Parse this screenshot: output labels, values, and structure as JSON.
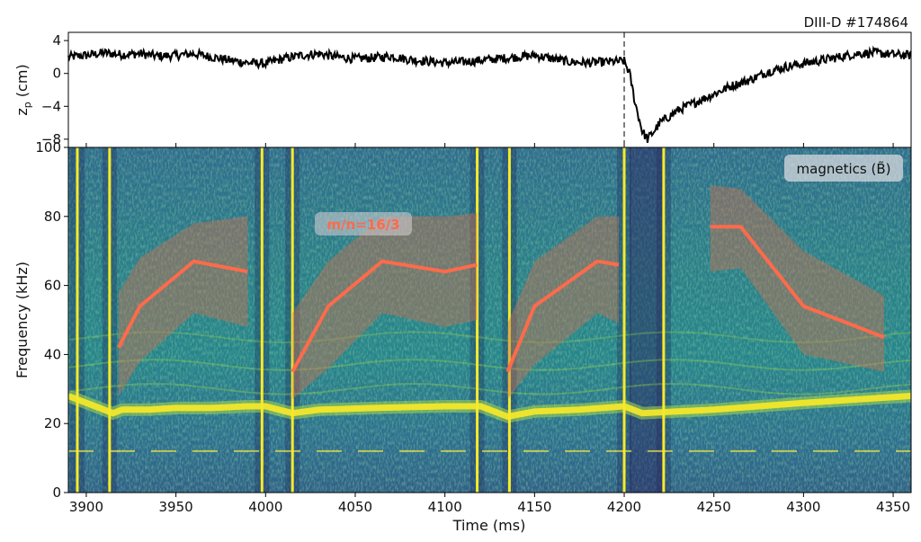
{
  "shot_label": "DIII-D #174864",
  "chart_data": [
    {
      "type": "line",
      "ylabel": "z_p (cm)",
      "ylim": [
        -9,
        5
      ],
      "xlim": [
        3890,
        4360
      ],
      "yticks": [
        4,
        0,
        -4,
        -8
      ],
      "yticklabels": [
        "4",
        "0",
        "−4",
        "−8"
      ],
      "event_time": 4200,
      "series": [
        {
          "x": [
            3890,
            3900,
            3910,
            3920,
            3930,
            3940,
            3950,
            3960,
            3970,
            3980,
            3990,
            4000,
            4010,
            4020,
            4030,
            4040,
            4050,
            4060,
            4070,
            4080,
            4090,
            4100,
            4110,
            4120,
            4130,
            4140,
            4150,
            4160,
            4170,
            4180,
            4190,
            4200,
            4203,
            4206,
            4210,
            4213,
            4216,
            4220,
            4230,
            4240,
            4250,
            4260,
            4270,
            4280,
            4290,
            4300,
            4310,
            4320,
            4330,
            4340,
            4350,
            4360
          ],
          "y": [
            2,
            2.2,
            2.5,
            2.3,
            2.4,
            2.1,
            2.2,
            2.4,
            2.0,
            1.6,
            1.3,
            1.2,
            1.8,
            2.2,
            2.4,
            2.0,
            1.8,
            1.9,
            2.1,
            1.7,
            1.5,
            1.3,
            1.4,
            1.6,
            1.8,
            2.0,
            2.2,
            1.8,
            1.4,
            1.3,
            1.4,
            1.5,
            0,
            -3.5,
            -7.0,
            -8.0,
            -7.2,
            -6.0,
            -4.5,
            -3.5,
            -2.5,
            -1.5,
            -0.8,
            0.2,
            0.8,
            1.2,
            1.6,
            2.0,
            2.4,
            2.5,
            2.3,
            2.2
          ]
        }
      ]
    },
    {
      "type": "heatmap",
      "xlabel": "Time (ms)",
      "ylabel": "Frequency (kHz)",
      "xlim": [
        3890,
        4360
      ],
      "ylim": [
        0,
        100
      ],
      "xticks": [
        3900,
        3950,
        4000,
        4050,
        4100,
        4150,
        4200,
        4250,
        4300,
        4350
      ],
      "yticks": [
        0,
        20,
        40,
        60,
        80,
        100
      ],
      "legend": "magnetics (B̃)",
      "annotation": "m/n=16/3",
      "broadband_bursts_ms": [
        3895,
        3913,
        3998,
        4015,
        4118,
        4136,
        4200,
        4222
      ],
      "dominant_mode": {
        "x": [
          3890,
          3900,
          3915,
          3920,
          3935,
          3950,
          3970,
          3990,
          4000,
          4015,
          4030,
          4060,
          4100,
          4120,
          4135,
          4150,
          4175,
          4200,
          4210,
          4250,
          4300,
          4360
        ],
        "y": [
          28,
          26,
          23,
          24,
          24,
          24.5,
          24.5,
          25,
          25,
          23,
          24,
          24.5,
          25,
          25,
          22,
          23.5,
          24,
          25,
          23,
          24,
          26,
          28
        ]
      },
      "low_mode_kHz": 12,
      "series": [
        {
          "name": "m/n=16/3",
          "segments": [
            {
              "x": [
                3918,
                3930,
                3960,
                3990
              ],
              "y": [
                42,
                54,
                67,
                64
              ],
              "upper": [
                58,
                68,
                78,
                80
              ],
              "lower": [
                28,
                38,
                52,
                48
              ]
            },
            {
              "x": [
                4015,
                4035,
                4065,
                4100,
                4118
              ],
              "y": [
                35,
                54,
                67,
                64,
                66
              ],
              "upper": [
                52,
                67,
                80,
                80,
                81
              ],
              "lower": [
                27,
                36,
                52,
                48,
                50
              ]
            },
            {
              "x": [
                4135,
                4150,
                4185,
                4197
              ],
              "y": [
                35,
                54,
                67,
                66
              ],
              "upper": [
                49,
                67,
                80,
                80
              ],
              "lower": [
                27,
                37,
                52,
                49
              ]
            },
            {
              "x": [
                4248,
                4265,
                4300,
                4345
              ],
              "y": [
                77,
                77,
                54,
                45
              ],
              "upper": [
                89,
                88,
                70,
                57
              ],
              "lower": [
                64,
                65,
                40,
                35
              ]
            }
          ]
        }
      ]
    }
  ]
}
